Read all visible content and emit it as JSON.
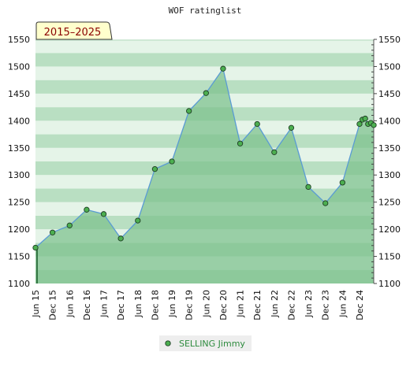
{
  "chart_data": {
    "type": "line",
    "title": "WOF ratinglist",
    "period_label": "2015–2025",
    "ylim": [
      1100,
      1550
    ],
    "y_ticks": [
      1100,
      1150,
      1200,
      1250,
      1300,
      1350,
      1400,
      1450,
      1500,
      1550
    ],
    "x_tick_labels": [
      "Jun 15",
      "Dec 15",
      "Jun 16",
      "Dec 16",
      "Jun 17",
      "Dec 17",
      "Jun 18",
      "Dec 18",
      "Jun 19",
      "Dec 19",
      "Jun 20",
      "Dec 20",
      "Jun 21",
      "Dec 21",
      "Jun 22",
      "Dec 22",
      "Jun 23",
      "Dec 23",
      "Jun 24",
      "Dec 24"
    ],
    "legend_position": "bottom-center",
    "colors": {
      "fill": "#7cc08c",
      "line": "#5a9bd4",
      "marker": "#4caf50",
      "band_dark": "#b9dfc2",
      "band_light": "#e5f4e8"
    },
    "series": [
      {
        "name": "SELLING Jimmy",
        "points": [
          {
            "x": "2015-06",
            "y": 1166
          },
          {
            "x": "2015-12",
            "y": 1194
          },
          {
            "x": "2016-06",
            "y": 1207
          },
          {
            "x": "2016-12",
            "y": 1236
          },
          {
            "x": "2017-06",
            "y": 1228
          },
          {
            "x": "2017-12",
            "y": 1183
          },
          {
            "x": "2018-06",
            "y": 1216
          },
          {
            "x": "2018-12",
            "y": 1311
          },
          {
            "x": "2019-06",
            "y": 1325
          },
          {
            "x": "2019-12",
            "y": 1418
          },
          {
            "x": "2020-06",
            "y": 1451
          },
          {
            "x": "2020-12",
            "y": 1496
          },
          {
            "x": "2021-06",
            "y": 1358
          },
          {
            "x": "2021-12",
            "y": 1394
          },
          {
            "x": "2022-06",
            "y": 1342
          },
          {
            "x": "2022-12",
            "y": 1387
          },
          {
            "x": "2023-06",
            "y": 1278
          },
          {
            "x": "2023-12",
            "y": 1248
          },
          {
            "x": "2024-06",
            "y": 1286
          },
          {
            "x": "2024-12",
            "y": 1394
          },
          {
            "x": "2025-01",
            "y": 1402
          },
          {
            "x": "2025-02",
            "y": 1404
          },
          {
            "x": "2025-03",
            "y": 1394
          },
          {
            "x": "2025-04",
            "y": 1396
          },
          {
            "x": "2025-05",
            "y": 1392
          }
        ]
      }
    ]
  }
}
